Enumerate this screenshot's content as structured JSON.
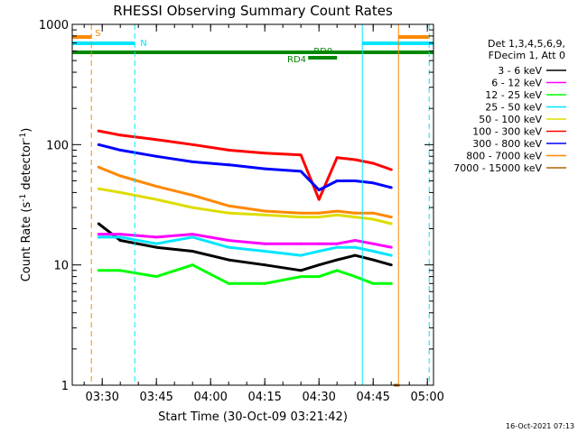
{
  "chart_data": {
    "type": "line",
    "title": "RHESSI Observing Summary Count Rates",
    "xlabel": "Start Time (30-Oct-09 03:21:42)",
    "ylabel_main": "Count Rate (s",
    "ylabel_sup1": "-1",
    "ylabel_mid": " detector",
    "ylabel_sup2": "-1",
    "ylabel_end": ")",
    "xlim": [
      "03:21:42",
      "05:01:42"
    ],
    "ylim": [
      1,
      1000
    ],
    "yscale": "log",
    "x_ticks": [
      "03:30",
      "03:45",
      "04:00",
      "04:15",
      "04:30",
      "04:45",
      "05:00"
    ],
    "y_ticks": [
      "1",
      "10",
      "100",
      "1000"
    ],
    "legend_header": [
      "Det 1,3,4,5,6,9,",
      "FDecim 1, Att 0"
    ],
    "legend_position": "right",
    "timestamp": "16-Oct-2021 07:13",
    "flags": [
      {
        "label": "S",
        "color": "#ff8800",
        "segments": [
          [
            "03:21:42",
            "03:27:00"
          ],
          [
            "04:52:00",
            "05:00:30"
          ]
        ]
      },
      {
        "label": "N",
        "color": "#00e5ff",
        "segments": [
          [
            "03:21:42",
            "03:39:00"
          ],
          [
            "04:42:00",
            "05:01:42"
          ]
        ]
      },
      {
        "label": "RD0",
        "color": "#008800",
        "segments": [
          [
            "04:27:00",
            "04:35:00"
          ]
        ]
      },
      {
        "label": "RD4",
        "color": "#008800",
        "segments": [
          [
            "03:21:42",
            "05:01:42"
          ]
        ]
      }
    ],
    "vertical_markers": [
      {
        "time": "03:21:42",
        "color": "#00e5ff",
        "style": "solid"
      },
      {
        "time": "03:27:00",
        "color": "#ff8800",
        "style": "dashed"
      },
      {
        "time": "03:39:00",
        "color": "#00e5ff",
        "style": "dashed"
      },
      {
        "time": "04:42:00",
        "color": "#00e5ff",
        "style": "solid"
      },
      {
        "time": "04:52:00",
        "color": "#ff8800",
        "style": "solid"
      },
      {
        "time": "05:00:30",
        "color": "#00e5ff",
        "style": "dashed"
      }
    ],
    "series": [
      {
        "name": "3 - 6 keV",
        "color": "#000000",
        "x": [
          "03:29",
          "03:35",
          "03:45",
          "03:55",
          "04:05",
          "04:15",
          "04:25",
          "04:30",
          "04:35",
          "04:40",
          "04:45",
          "04:50"
        ],
        "values": [
          22,
          16,
          14,
          13,
          11,
          10,
          9,
          10,
          11,
          12,
          11,
          10
        ]
      },
      {
        "name": "6 - 12 keV",
        "color": "#ff00ff",
        "x": [
          "03:29",
          "03:35",
          "03:45",
          "03:55",
          "04:05",
          "04:15",
          "04:25",
          "04:30",
          "04:35",
          "04:40",
          "04:45",
          "04:50"
        ],
        "values": [
          18,
          18,
          17,
          18,
          16,
          15,
          15,
          15,
          15,
          16,
          15,
          14
        ]
      },
      {
        "name": "12 - 25 keV",
        "color": "#00ff00",
        "x": [
          "03:29",
          "03:35",
          "03:45",
          "03:55",
          "04:05",
          "04:15",
          "04:25",
          "04:30",
          "04:35",
          "04:40",
          "04:45",
          "04:50"
        ],
        "values": [
          9,
          9,
          8,
          10,
          7,
          7,
          8,
          8,
          9,
          8,
          7,
          7
        ]
      },
      {
        "name": "25 - 50 keV",
        "color": "#00e5ff",
        "x": [
          "03:29",
          "03:35",
          "03:45",
          "03:55",
          "04:05",
          "04:15",
          "04:25",
          "04:30",
          "04:35",
          "04:40",
          "04:45",
          "04:50"
        ],
        "values": [
          17,
          17,
          15,
          17,
          14,
          13,
          12,
          13,
          14,
          14,
          13,
          12
        ]
      },
      {
        "name": "50 - 100 keV",
        "color": "#dddd00",
        "x": [
          "03:29",
          "03:35",
          "03:45",
          "03:55",
          "04:05",
          "04:15",
          "04:25",
          "04:30",
          "04:35",
          "04:40",
          "04:45",
          "04:50"
        ],
        "values": [
          43,
          40,
          35,
          30,
          27,
          26,
          25,
          25,
          26,
          25,
          24,
          22
        ]
      },
      {
        "name": "100 - 300 keV",
        "color": "#ff0000",
        "x": [
          "03:29",
          "03:35",
          "03:45",
          "03:55",
          "04:05",
          "04:15",
          "04:25",
          "04:30",
          "04:35",
          "04:40",
          "04:45",
          "04:50"
        ],
        "values": [
          130,
          120,
          110,
          100,
          90,
          85,
          82,
          35,
          78,
          75,
          70,
          62
        ]
      },
      {
        "name": "300 - 800 keV",
        "color": "#0000ff",
        "x": [
          "03:29",
          "03:35",
          "03:45",
          "03:55",
          "04:05",
          "04:15",
          "04:25",
          "04:30",
          "04:35",
          "04:40",
          "04:45",
          "04:50"
        ],
        "values": [
          100,
          90,
          80,
          72,
          68,
          63,
          60,
          42,
          50,
          50,
          48,
          44
        ]
      },
      {
        "name": "800 - 7000 keV",
        "color": "#ff8800",
        "x": [
          "03:29",
          "03:35",
          "03:45",
          "03:55",
          "04:05",
          "04:15",
          "04:25",
          "04:30",
          "04:35",
          "04:40",
          "04:45",
          "04:50"
        ],
        "values": [
          65,
          55,
          45,
          38,
          31,
          28,
          27,
          27,
          28,
          27,
          27,
          25
        ]
      },
      {
        "name": "7000 - 15000 keV",
        "color": "#aa6600",
        "x": [
          "04:51",
          "04:52"
        ],
        "values": [
          1,
          1
        ]
      }
    ]
  }
}
